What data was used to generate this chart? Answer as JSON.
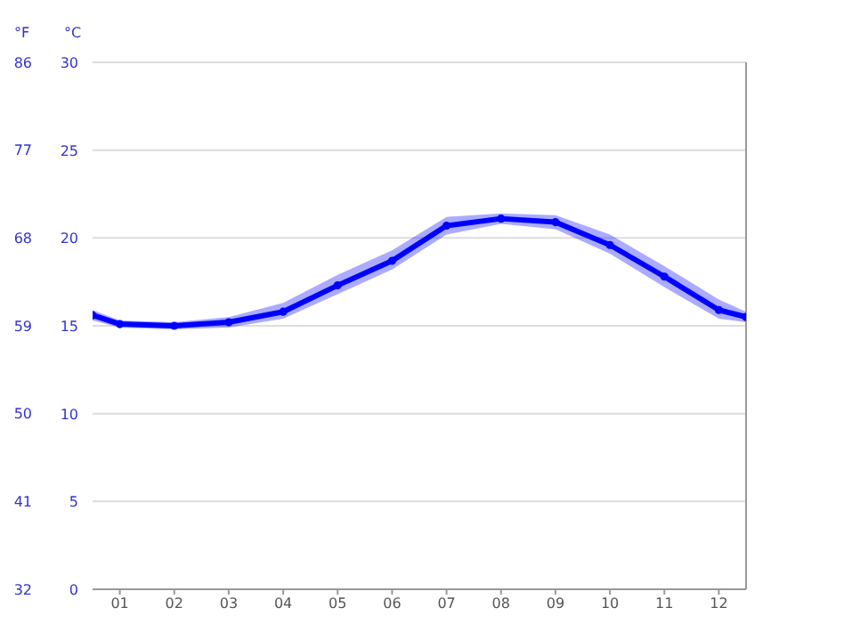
{
  "chart_data": {
    "type": "line",
    "ylabel": "°C",
    "y2label": "°F",
    "x": [
      0.5,
      1,
      2,
      3,
      4,
      5,
      6,
      7,
      8,
      9,
      10,
      11,
      12,
      12.5
    ],
    "series": [
      {
        "color": "#0000ff",
        "values": [
          15.6,
          15.1,
          15.0,
          15.2,
          15.8,
          17.3,
          18.7,
          20.7,
          21.1,
          20.9,
          19.6,
          17.8,
          15.9,
          15.5
        ],
        "lower": [
          15.3,
          14.9,
          14.8,
          14.9,
          15.4,
          16.8,
          18.2,
          20.2,
          20.8,
          20.5,
          19.1,
          17.2,
          15.4,
          15.2
        ],
        "upper": [
          15.9,
          15.3,
          15.2,
          15.5,
          16.3,
          17.9,
          19.3,
          21.2,
          21.4,
          21.3,
          20.2,
          18.4,
          16.5,
          15.8
        ]
      }
    ],
    "xlim": [
      0.5,
      12.5
    ],
    "xticks": [
      {
        "value": 1,
        "label": "01"
      },
      {
        "value": 2,
        "label": "02"
      },
      {
        "value": 3,
        "label": "03"
      },
      {
        "value": 4,
        "label": "04"
      },
      {
        "value": 5,
        "label": "05"
      },
      {
        "value": 6,
        "label": "06"
      },
      {
        "value": 7,
        "label": "07"
      },
      {
        "value": 8,
        "label": "08"
      },
      {
        "value": 9,
        "label": "09"
      },
      {
        "value": 10,
        "label": "10"
      },
      {
        "value": 11,
        "label": "11"
      },
      {
        "value": 12,
        "label": "12"
      }
    ],
    "ylim": [
      0,
      30
    ],
    "yticks": [
      0,
      5,
      10,
      15,
      20,
      25,
      30
    ],
    "y2lim": [
      32,
      86
    ],
    "y2ticks": [
      32,
      41,
      50,
      59,
      68,
      77,
      86
    ],
    "grid": "y",
    "marker": "circle",
    "line_style": "solid"
  }
}
